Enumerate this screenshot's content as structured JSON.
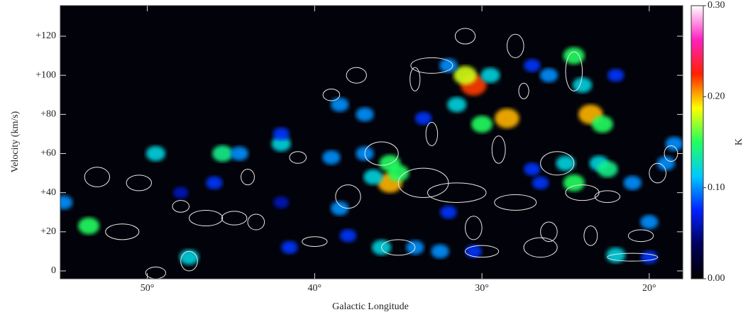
{
  "chart_data": {
    "type": "heatmap",
    "x_label": "Galactic Longitude",
    "y_label": "Velocity (km/s)",
    "colorbar_label": "K",
    "xlim": [
      55.2,
      18
    ],
    "ylim": [
      -4,
      135.6
    ],
    "clim": [
      0,
      0.3
    ],
    "xticks": [
      {
        "value": 50,
        "label": "50°"
      },
      {
        "value": 40,
        "label": "40°"
      },
      {
        "value": 30,
        "label": "30°"
      },
      {
        "value": 20,
        "label": "20°"
      }
    ],
    "yticks": [
      0,
      {
        "value": 20,
        "label": "+20"
      },
      {
        "value": 40,
        "label": "+40"
      },
      {
        "value": 60,
        "label": "+60"
      },
      {
        "value": 80,
        "label": "+80"
      },
      {
        "value": 100,
        "label": "+100"
      },
      {
        "value": 120,
        "label": "+120"
      }
    ],
    "cticks": [
      {
        "value": 0,
        "label": "0.00"
      },
      {
        "value": 0.1,
        "label": "0.10"
      },
      {
        "value": 0.2,
        "label": "0.20"
      },
      {
        "value": 0.3,
        "label": "0.30"
      }
    ],
    "colormap": [
      "#000000",
      "#00005a",
      "#0020ff",
      "#00c8ff",
      "#20ff60",
      "#ffff00",
      "#ff2000",
      "#ff20c0",
      "#ffffff"
    ],
    "emission": {
      "x": [
        53.5,
        47.5,
        36,
        34,
        32.5,
        30.5,
        22,
        20,
        41.5,
        38,
        49.5,
        45.5,
        44.5,
        42,
        39,
        37,
        35.5,
        35.5,
        35,
        36.5,
        25,
        24.5,
        23,
        22.5,
        19,
        18.5,
        21,
        27,
        26.5,
        30.5,
        31,
        29.5,
        31.5,
        28.5,
        30,
        24.5,
        24,
        23.5,
        22.8,
        26,
        38.5,
        37,
        32,
        42,
        27,
        33.5,
        22,
        55,
        46,
        38.5,
        32,
        42,
        48,
        20
      ],
      "y": [
        23,
        7,
        12,
        12,
        10,
        10,
        8,
        7,
        12,
        18,
        60,
        60,
        60,
        65,
        58,
        60,
        55,
        45,
        50,
        48,
        55,
        45,
        55,
        52,
        55,
        65,
        45,
        52,
        45,
        95,
        100,
        100,
        85,
        78,
        75,
        110,
        95,
        80,
        75,
        100,
        85,
        80,
        105,
        70,
        105,
        78,
        100,
        35,
        45,
        32,
        30,
        35,
        40,
        25
      ],
      "values": [
        0.15,
        0.12,
        0.12,
        0.1,
        0.1,
        0.08,
        0.12,
        0.08,
        0.08,
        0.08,
        0.12,
        0.14,
        0.1,
        0.12,
        0.1,
        0.1,
        0.15,
        0.2,
        0.15,
        0.12,
        0.12,
        0.15,
        0.12,
        0.14,
        0.1,
        0.1,
        0.1,
        0.08,
        0.08,
        0.22,
        0.18,
        0.12,
        0.12,
        0.2,
        0.15,
        0.15,
        0.12,
        0.2,
        0.15,
        0.1,
        0.1,
        0.1,
        0.1,
        0.08,
        0.08,
        0.08,
        0.08,
        0.1,
        0.08,
        0.1,
        0.08,
        0.06,
        0.06,
        0.1
      ]
    },
    "ellipses": {
      "x": [
        33,
        46.5,
        44.8,
        51.5,
        47.5,
        49.5,
        33.5,
        31.5,
        28,
        26.5,
        24,
        25.5,
        22.5,
        36,
        35,
        30,
        21,
        40,
        43.5,
        53,
        50.5,
        48,
        39,
        37.5,
        28,
        24.5,
        27.5,
        19.5,
        20.5,
        23.5,
        30.5,
        38,
        44,
        41,
        33,
        29,
        26,
        18.7,
        31,
        34
      ],
      "y": [
        105,
        27,
        27,
        20,
        5,
        -1,
        45,
        40,
        35,
        12,
        40,
        55,
        38,
        60,
        12,
        10,
        7,
        15,
        25,
        48,
        45,
        33,
        90,
        100,
        115,
        102,
        92,
        50,
        18,
        18,
        22,
        38,
        48,
        58,
        70,
        62,
        20,
        60,
        120,
        98
      ],
      "width": [
        2.5,
        2,
        1.5,
        2,
        1,
        1.2,
        3,
        3.5,
        2.5,
        2,
        2,
        2,
        1.5,
        2,
        2,
        2,
        3,
        1.5,
        1,
        1.5,
        1.5,
        1,
        1,
        1.2,
        1,
        1,
        0.6,
        1,
        1.5,
        0.8,
        1,
        1.5,
        0.8,
        1,
        0.7,
        0.8,
        1,
        0.8,
        1.2,
        0.6
      ],
      "height": [
        8,
        8,
        7,
        8,
        10,
        6,
        15,
        10,
        8,
        10,
        8,
        12,
        6,
        12,
        8,
        6,
        4,
        5,
        8,
        10,
        8,
        6,
        6,
        8,
        12,
        20,
        8,
        10,
        6,
        10,
        12,
        12,
        8,
        6,
        12,
        14,
        10,
        8,
        8,
        12
      ]
    }
  }
}
